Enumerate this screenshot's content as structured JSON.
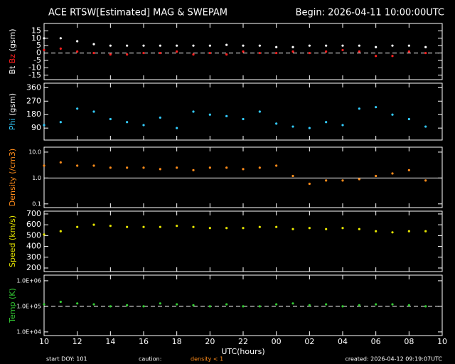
{
  "header": {
    "title": "ACE RTSW[Estimated] MAG & SWEPAM",
    "begin": "Begin: 2026-04-11 10:00:00UTC"
  },
  "chart_data": [
    {
      "type": "scatter",
      "ylabel": [
        {
          "text": "Bt",
          "color": "#ffffff"
        },
        {
          "text": "Bz",
          "color": "#ff2020"
        },
        {
          "text": "(gsm)",
          "color": "#ffffff"
        }
      ],
      "x": [
        10,
        11,
        12,
        13,
        14,
        15,
        16,
        17,
        18,
        19,
        20,
        21,
        22,
        23,
        24,
        25,
        26,
        27,
        28,
        29,
        30,
        31,
        32,
        33
      ],
      "xlim": [
        10,
        34
      ],
      "series": [
        {
          "name": "Bt",
          "color": "#ffffff",
          "values": [
            10,
            10,
            8,
            6,
            5,
            5,
            5,
            5,
            5,
            5,
            5,
            5.5,
            5,
            5,
            4,
            4,
            5,
            5,
            5,
            5,
            4,
            5,
            5,
            4
          ]
        },
        {
          "name": "Bz",
          "color": "#ff2020",
          "values": [
            2,
            3,
            1,
            0,
            -1,
            -1,
            0,
            0,
            1,
            -1,
            0,
            -1,
            1,
            0,
            0,
            1,
            0,
            1,
            2,
            1,
            -2,
            -2,
            1,
            0
          ]
        }
      ],
      "ylim": [
        -18,
        20
      ],
      "yticks": [
        15,
        10,
        5,
        0,
        -5,
        -10,
        -15
      ],
      "hline": {
        "value": 0,
        "dashed": true
      }
    },
    {
      "type": "scatter",
      "ylabel": [
        {
          "text": "Phi",
          "color": "#33ccff"
        },
        {
          "text": "(gsm)",
          "color": "#ffffff"
        }
      ],
      "x": [
        10,
        11,
        12,
        13,
        14,
        15,
        16,
        17,
        18,
        19,
        20,
        21,
        22,
        23,
        24,
        25,
        26,
        27,
        28,
        29,
        30,
        31,
        32,
        33
      ],
      "xlim": [
        10,
        34
      ],
      "series": [
        {
          "name": "Phi",
          "color": "#33ccff",
          "values": [
            110,
            130,
            220,
            200,
            150,
            130,
            110,
            160,
            90,
            200,
            180,
            170,
            150,
            200,
            120,
            100,
            90,
            130,
            110,
            220,
            230,
            180,
            150,
            100
          ]
        }
      ],
      "ylim": [
        10,
        390
      ],
      "yticks": [
        90,
        180,
        270,
        360
      ]
    },
    {
      "type": "scatter",
      "log": true,
      "ylabel": [
        {
          "text": "Density (/cm3)",
          "color": "#ff8c1a"
        }
      ],
      "x": [
        10,
        11,
        12,
        13,
        14,
        15,
        16,
        17,
        18,
        19,
        20,
        21,
        22,
        23,
        24,
        25,
        26,
        27,
        28,
        29,
        30,
        31,
        32,
        33
      ],
      "xlim": [
        10,
        34
      ],
      "series": [
        {
          "name": "Density",
          "color": "#ff8c1a",
          "values": [
            3,
            4,
            3,
            3,
            2.5,
            2.5,
            2.5,
            2.2,
            2.5,
            2,
            2.5,
            2.5,
            2.2,
            2.5,
            3,
            1.2,
            0.6,
            0.8,
            0.8,
            0.9,
            1.2,
            1.5,
            2,
            0.8
          ]
        }
      ],
      "ylim": [
        0.072,
        15.5
      ],
      "yticks": [
        {
          "value": 10,
          "label": "10.0"
        },
        {
          "value": 1,
          "label": "1.0"
        },
        {
          "value": 0.1,
          "label": "0.1"
        }
      ],
      "hline": {
        "value": 1,
        "dashed": false
      }
    },
    {
      "type": "scatter",
      "ylabel": [
        {
          "text": "Speed (km/s)",
          "color": "#e6e600"
        }
      ],
      "x": [
        10,
        11,
        12,
        13,
        14,
        15,
        16,
        17,
        18,
        19,
        20,
        21,
        22,
        23,
        24,
        25,
        26,
        27,
        28,
        29,
        30,
        31,
        32,
        33
      ],
      "xlim": [
        10,
        34
      ],
      "series": [
        {
          "name": "Speed",
          "color": "#e6e600",
          "values": [
            510,
            540,
            580,
            600,
            590,
            580,
            580,
            580,
            590,
            580,
            570,
            570,
            570,
            580,
            580,
            560,
            570,
            560,
            570,
            560,
            540,
            530,
            540,
            540
          ]
        }
      ],
      "ylim": [
        167,
        726
      ],
      "yticks": [
        700,
        600,
        500,
        400,
        300,
        200
      ]
    },
    {
      "type": "scatter",
      "log": true,
      "ylabel": [
        {
          "text": "Temp (K)",
          "color": "#33cc33"
        }
      ],
      "x": [
        10,
        11,
        12,
        13,
        14,
        15,
        16,
        17,
        18,
        19,
        20,
        21,
        22,
        23,
        24,
        25,
        26,
        27,
        28,
        29,
        30,
        31,
        32,
        33
      ],
      "xlim": [
        10,
        34
      ],
      "series": [
        {
          "name": "Temp",
          "color": "#33cc33",
          "values": [
            120000,
            150000,
            130000,
            120000,
            100000,
            110000,
            100000,
            130000,
            120000,
            110000,
            100000,
            120000,
            100000,
            100000,
            120000,
            130000,
            110000,
            120000,
            100000,
            110000,
            120000,
            120000,
            110000,
            100000
          ]
        }
      ],
      "ylim": [
        7200,
        1660000
      ],
      "yticks": [
        {
          "value": 1000000,
          "label": "1.0E+06"
        },
        {
          "value": 100000,
          "label": "1.0E+05"
        },
        {
          "value": 10000,
          "label": "1.0E+04"
        }
      ],
      "hline": {
        "value": 100000,
        "dashed": true
      },
      "xlabel": "UTC(hours)",
      "xticks": [
        10,
        12,
        14,
        16,
        18,
        20,
        22,
        {
          "value": 24,
          "label": "00"
        },
        {
          "value": 26,
          "label": "02"
        },
        {
          "value": 28,
          "label": "04"
        },
        {
          "value": 30,
          "label": "06"
        },
        {
          "value": 32,
          "label": "08"
        },
        {
          "value": 34,
          "label": "10"
        }
      ]
    }
  ],
  "footer": {
    "start": "start DOY: 101",
    "caution": "caution:",
    "note": "density < 1",
    "created": "created: 2026-04-12 09:19:07UTC"
  }
}
